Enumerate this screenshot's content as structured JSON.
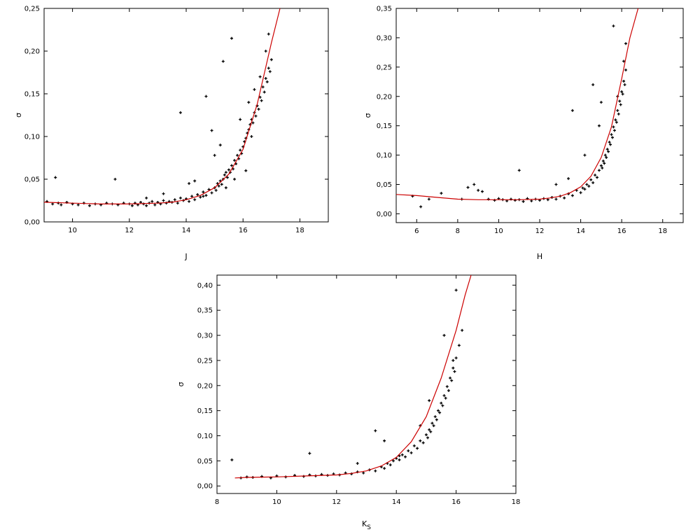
{
  "chart_data": [
    {
      "type": "scatter",
      "xlabel": "J",
      "ylabel": "σ",
      "xlim": [
        9,
        19
      ],
      "ylim": [
        0,
        0.25
      ],
      "xticks": [
        10,
        12,
        14,
        16,
        18
      ],
      "yticks": [
        0,
        0.05,
        0.1,
        0.15,
        0.2,
        0.25
      ],
      "xtick_labels": [
        "10",
        "12",
        "14",
        "16",
        "18"
      ],
      "ytick_labels": [
        "0,00",
        "0,05",
        "0,10",
        "0,15",
        "0,20",
        "0,25"
      ],
      "grid": false,
      "marker_color": "#000000",
      "fit_color": "#cc0000",
      "fit_curve": {
        "x": [
          9.0,
          10.0,
          11.0,
          12.0,
          13.0,
          13.5,
          14.0,
          14.5,
          15.0,
          15.5,
          16.0,
          16.5,
          17.0,
          17.3
        ],
        "y": [
          0.023,
          0.022,
          0.021,
          0.021,
          0.022,
          0.023,
          0.026,
          0.031,
          0.04,
          0.056,
          0.085,
          0.138,
          0.21,
          0.25
        ]
      },
      "series": [
        {
          "x": [
            9.1,
            9.3,
            9.5,
            9.6,
            9.8,
            10.0,
            10.2,
            10.4,
            10.6,
            10.8,
            11.0,
            11.2,
            11.4,
            11.6,
            11.8,
            12.0,
            12.1,
            12.2,
            12.3,
            12.4,
            12.5,
            12.6,
            12.7,
            12.8,
            12.9,
            13.0,
            13.1,
            13.2,
            13.3,
            13.4,
            13.5,
            13.6,
            13.7,
            13.8,
            13.9,
            14.0,
            14.1,
            14.2,
            14.3,
            14.4,
            14.5,
            14.6,
            14.7,
            14.8,
            14.9,
            15.0,
            15.05,
            15.1,
            15.15,
            15.2,
            15.25,
            15.3,
            15.35,
            15.4,
            15.45,
            15.5,
            15.55,
            15.6,
            15.65,
            15.7,
            15.75,
            15.8,
            15.85,
            15.9,
            15.95,
            16.0,
            16.05,
            16.1,
            16.15,
            16.2,
            16.25,
            16.3,
            16.35,
            16.4,
            16.45,
            16.5,
            16.55,
            16.6,
            16.65,
            16.7,
            16.75,
            16.8,
            16.85,
            16.9,
            16.95,
            17.0,
            9.4,
            11.5,
            13.8,
            14.7,
            15.3,
            15.6,
            15.0,
            14.3,
            16.2,
            16.4,
            16.8,
            15.9,
            15.2,
            14.9,
            16.6,
            16.1,
            15.7,
            15.4,
            14.6,
            16.3,
            16.9,
            13.2,
            12.6,
            14.1
          ],
          "y": [
            0.024,
            0.021,
            0.022,
            0.02,
            0.023,
            0.021,
            0.02,
            0.022,
            0.019,
            0.021,
            0.02,
            0.022,
            0.021,
            0.02,
            0.022,
            0.021,
            0.019,
            0.022,
            0.02,
            0.023,
            0.021,
            0.019,
            0.022,
            0.024,
            0.02,
            0.023,
            0.021,
            0.025,
            0.022,
            0.024,
            0.023,
            0.026,
            0.022,
            0.028,
            0.025,
            0.027,
            0.024,
            0.03,
            0.026,
            0.032,
            0.029,
            0.035,
            0.031,
            0.038,
            0.034,
            0.04,
            0.037,
            0.045,
            0.042,
            0.048,
            0.044,
            0.05,
            0.055,
            0.058,
            0.052,
            0.061,
            0.058,
            0.066,
            0.062,
            0.072,
            0.068,
            0.078,
            0.074,
            0.084,
            0.08,
            0.088,
            0.094,
            0.098,
            0.104,
            0.108,
            0.114,
            0.12,
            0.116,
            0.128,
            0.124,
            0.136,
            0.132,
            0.146,
            0.142,
            0.158,
            0.152,
            0.168,
            0.164,
            0.18,
            0.176,
            0.19,
            0.052,
            0.05,
            0.128,
            0.147,
            0.188,
            0.215,
            0.078,
            0.048,
            0.14,
            0.155,
            0.2,
            0.12,
            0.09,
            0.107,
            0.17,
            0.06,
            0.05,
            0.04,
            0.03,
            0.1,
            0.22,
            0.033,
            0.028,
            0.045
          ]
        }
      ]
    },
    {
      "type": "scatter",
      "xlabel": "H",
      "ylabel": "σ",
      "xlim": [
        5,
        19
      ],
      "ylim": [
        -0.015,
        0.35
      ],
      "xticks": [
        6,
        8,
        10,
        12,
        14,
        16,
        18
      ],
      "yticks": [
        0,
        0.05,
        0.1,
        0.15,
        0.2,
        0.25,
        0.3,
        0.35
      ],
      "xtick_labels": [
        "6",
        "8",
        "10",
        "12",
        "14",
        "16",
        "18"
      ],
      "ytick_labels": [
        "0,00",
        "0,05",
        "0,10",
        "0,15",
        "0,20",
        "0,25",
        "0,30",
        "0,35"
      ],
      "grid": false,
      "marker_color": "#000000",
      "fit_color": "#cc0000",
      "fit_curve": {
        "x": [
          5.0,
          6.0,
          7.0,
          8.0,
          9.0,
          10.0,
          11.0,
          12.0,
          12.5,
          13.0,
          13.5,
          14.0,
          14.5,
          15.0,
          15.5,
          16.0,
          16.4,
          16.8
        ],
        "y": [
          0.033,
          0.031,
          0.028,
          0.025,
          0.024,
          0.024,
          0.024,
          0.025,
          0.027,
          0.03,
          0.036,
          0.046,
          0.064,
          0.096,
          0.148,
          0.23,
          0.3,
          0.35
        ]
      },
      "series": [
        {
          "x": [
            5.8,
            6.2,
            6.6,
            7.2,
            8.2,
            8.8,
            9.2,
            9.5,
            9.8,
            10.0,
            10.2,
            10.4,
            10.6,
            10.8,
            11.0,
            11.2,
            11.4,
            11.6,
            11.8,
            12.0,
            12.2,
            12.4,
            12.6,
            12.8,
            13.0,
            13.2,
            13.4,
            13.6,
            13.8,
            14.0,
            14.1,
            14.2,
            14.3,
            14.4,
            14.5,
            14.6,
            14.7,
            14.8,
            14.9,
            15.0,
            15.05,
            15.1,
            15.15,
            15.2,
            15.25,
            15.3,
            15.35,
            15.4,
            15.45,
            15.5,
            15.55,
            15.6,
            15.65,
            15.7,
            15.75,
            15.8,
            15.85,
            15.9,
            15.95,
            16.0,
            16.05,
            16.1,
            16.15,
            16.2,
            11.0,
            13.6,
            14.6,
            15.6,
            16.2,
            14.2,
            15.0,
            13.4,
            12.8,
            14.9,
            15.8,
            16.1,
            9.0,
            8.5
          ],
          "y": [
            0.03,
            0.012,
            0.025,
            0.035,
            0.025,
            0.05,
            0.038,
            0.025,
            0.023,
            0.026,
            0.024,
            0.022,
            0.025,
            0.023,
            0.024,
            0.021,
            0.026,
            0.022,
            0.025,
            0.023,
            0.026,
            0.024,
            0.028,
            0.025,
            0.03,
            0.027,
            0.034,
            0.031,
            0.04,
            0.036,
            0.044,
            0.042,
            0.05,
            0.047,
            0.058,
            0.053,
            0.066,
            0.062,
            0.074,
            0.082,
            0.078,
            0.09,
            0.086,
            0.1,
            0.096,
            0.11,
            0.106,
            0.122,
            0.118,
            0.135,
            0.13,
            0.148,
            0.142,
            0.16,
            0.156,
            0.176,
            0.17,
            0.192,
            0.186,
            0.208,
            0.204,
            0.226,
            0.22,
            0.245,
            0.074,
            0.176,
            0.22,
            0.32,
            0.29,
            0.1,
            0.19,
            0.06,
            0.05,
            0.15,
            0.2,
            0.26,
            0.04,
            0.045
          ]
        }
      ]
    },
    {
      "type": "scatter",
      "xlabel": "K",
      "xlabel_subscript": "S",
      "ylabel": "σ",
      "xlim": [
        8,
        18
      ],
      "ylim": [
        -0.015,
        0.42
      ],
      "xticks": [
        8,
        10,
        12,
        14,
        16,
        18
      ],
      "yticks": [
        0,
        0.05,
        0.1,
        0.15,
        0.2,
        0.25,
        0.3,
        0.35,
        0.4
      ],
      "xtick_labels": [
        "8",
        "10",
        "12",
        "14",
        "16",
        "18"
      ],
      "ytick_labels": [
        "0,00",
        "0,05",
        "0,10",
        "0,15",
        "0,20",
        "0,25",
        "0,30",
        "0,35",
        "0,40"
      ],
      "grid": false,
      "marker_color": "#000000",
      "fit_color": "#cc0000",
      "fit_curve": {
        "x": [
          8.6,
          9.0,
          10.0,
          11.0,
          12.0,
          12.5,
          13.0,
          13.5,
          14.0,
          14.5,
          15.0,
          15.5,
          16.0,
          16.3,
          16.5
        ],
        "y": [
          0.016,
          0.017,
          0.018,
          0.02,
          0.022,
          0.025,
          0.03,
          0.04,
          0.057,
          0.088,
          0.138,
          0.215,
          0.31,
          0.38,
          0.42
        ]
      },
      "series": [
        {
          "x": [
            8.5,
            8.8,
            9.0,
            9.2,
            9.5,
            9.8,
            10.0,
            10.3,
            10.6,
            10.9,
            11.1,
            11.3,
            11.5,
            11.7,
            11.9,
            12.1,
            12.3,
            12.5,
            12.7,
            12.9,
            13.1,
            13.3,
            13.5,
            13.6,
            13.7,
            13.8,
            13.9,
            14.0,
            14.1,
            14.2,
            14.3,
            14.4,
            14.5,
            14.6,
            14.7,
            14.8,
            14.9,
            15.0,
            15.05,
            15.1,
            15.15,
            15.2,
            15.25,
            15.3,
            15.35,
            15.4,
            15.45,
            15.5,
            15.55,
            15.6,
            15.65,
            15.7,
            15.75,
            15.8,
            15.85,
            15.9,
            15.95,
            16.0,
            16.1,
            16.2,
            11.1,
            13.3,
            13.6,
            14.1,
            15.1,
            15.9,
            16.0,
            12.7,
            14.8,
            15.6
          ],
          "y": [
            0.052,
            0.016,
            0.018,
            0.017,
            0.019,
            0.016,
            0.02,
            0.018,
            0.021,
            0.019,
            0.022,
            0.02,
            0.023,
            0.021,
            0.024,
            0.022,
            0.026,
            0.024,
            0.028,
            0.026,
            0.032,
            0.03,
            0.038,
            0.035,
            0.045,
            0.042,
            0.05,
            0.055,
            0.052,
            0.062,
            0.058,
            0.07,
            0.066,
            0.08,
            0.075,
            0.09,
            0.086,
            0.102,
            0.096,
            0.112,
            0.108,
            0.125,
            0.12,
            0.138,
            0.132,
            0.15,
            0.146,
            0.165,
            0.16,
            0.18,
            0.175,
            0.198,
            0.19,
            0.215,
            0.21,
            0.235,
            0.228,
            0.255,
            0.28,
            0.31,
            0.065,
            0.11,
            0.09,
            0.06,
            0.17,
            0.25,
            0.39,
            0.045,
            0.12,
            0.3
          ]
        }
      ]
    }
  ]
}
